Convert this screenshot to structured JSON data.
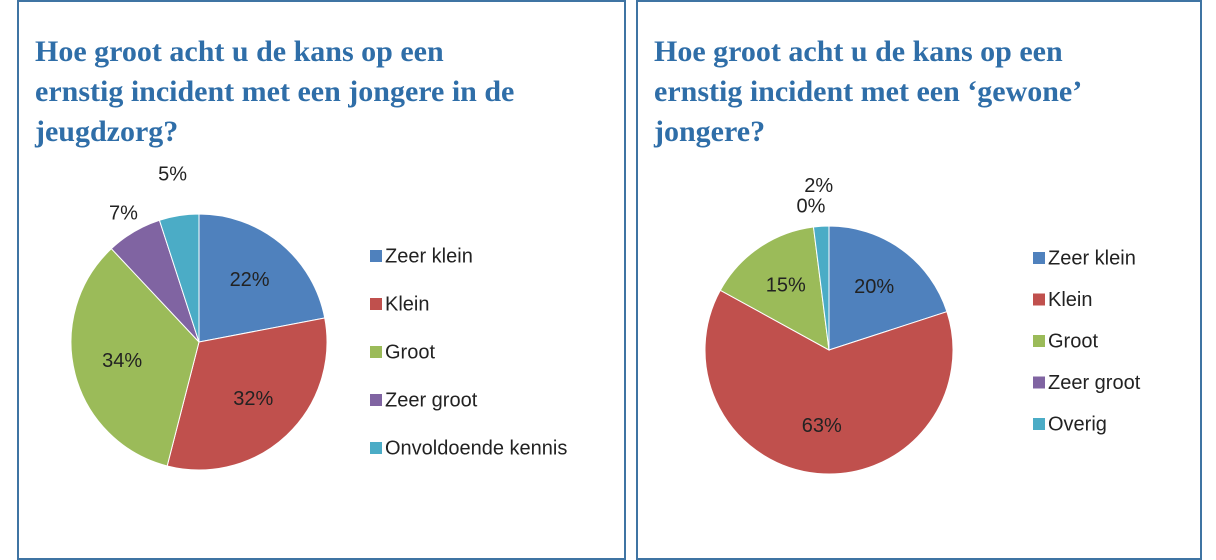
{
  "chart_data": [
    {
      "type": "pie",
      "title": "Hoe groot acht u de kans op een ernstig incident met een jongere in de jeugdzorg?",
      "categories": [
        "Zeer klein",
        "Klein",
        "Groot",
        "Zeer groot",
        "Onvoldoende kennis"
      ],
      "values": [
        22,
        32,
        34,
        7,
        5
      ],
      "value_labels": [
        "22%",
        "32%",
        "34%",
        "7%",
        "5%"
      ],
      "colors": [
        "#4f81bd",
        "#c0504d",
        "#9bbb59",
        "#8064a2",
        "#4bacc6"
      ]
    },
    {
      "type": "pie",
      "title": "Hoe groot acht u de kans op een ernstig incident met een ‘gewone’ jongere?",
      "categories": [
        "Zeer klein",
        "Klein",
        "Groot",
        "Zeer groot",
        "Overig"
      ],
      "values": [
        20,
        63,
        15,
        0,
        2
      ],
      "value_labels": [
        "20%",
        "63%",
        "15%",
        "0%",
        "2%"
      ],
      "colors": [
        "#4f81bd",
        "#c0504d",
        "#9bbb59",
        "#8064a2",
        "#4bacc6"
      ]
    }
  ]
}
